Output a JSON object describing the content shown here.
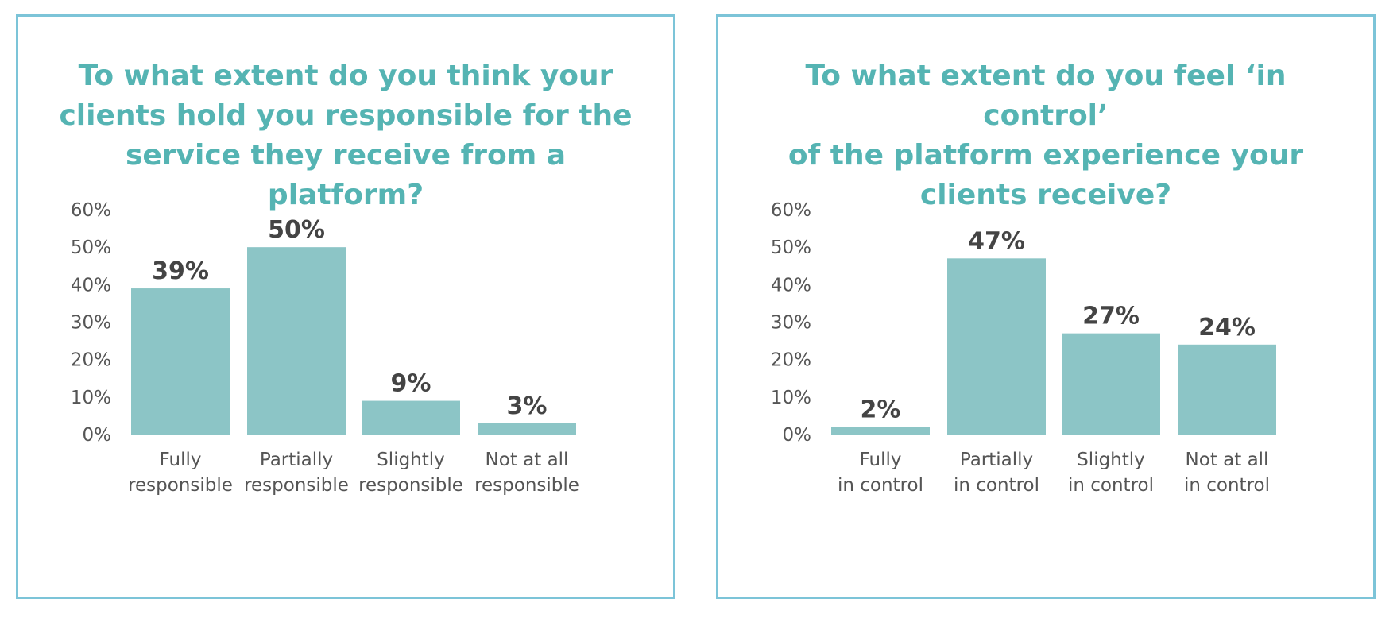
{
  "chart_data": [
    {
      "type": "bar",
      "title": "To what extent do you think your\nclients hold you responsible for the\nservice they receive from a platform?",
      "categories": [
        [
          "Fully",
          "responsible"
        ],
        [
          "Partially",
          "responsible"
        ],
        [
          "Slightly",
          "responsible"
        ],
        [
          "Not at all",
          "responsible"
        ]
      ],
      "values": [
        39,
        50,
        9,
        3
      ],
      "value_labels": [
        "39%",
        "50%",
        "9%",
        "3%"
      ],
      "yticks": [
        "0%",
        "10%",
        "20%",
        "30%",
        "40%",
        "50%",
        "60%"
      ],
      "ylim": [
        0,
        60
      ],
      "grid": false,
      "bar_color": "#8cc5c6",
      "title_color": "#55b4b3",
      "border_color": "#7cc4d8"
    },
    {
      "type": "bar",
      "title": "To what extent do you feel ‘in control’\nof the platform experience your\nclients receive?",
      "categories": [
        [
          "Fully",
          "in control"
        ],
        [
          "Partially",
          "in control"
        ],
        [
          "Slightly",
          "in control"
        ],
        [
          "Not at all",
          "in control"
        ]
      ],
      "values": [
        2,
        47,
        27,
        24
      ],
      "value_labels": [
        "2%",
        "47%",
        "27%",
        "24%"
      ],
      "yticks": [
        "0%",
        "10%",
        "20%",
        "30%",
        "40%",
        "50%",
        "60%"
      ],
      "ylim": [
        0,
        60
      ],
      "grid": false,
      "bar_color": "#8cc5c6",
      "title_color": "#55b4b3",
      "border_color": "#7cc4d8"
    }
  ]
}
